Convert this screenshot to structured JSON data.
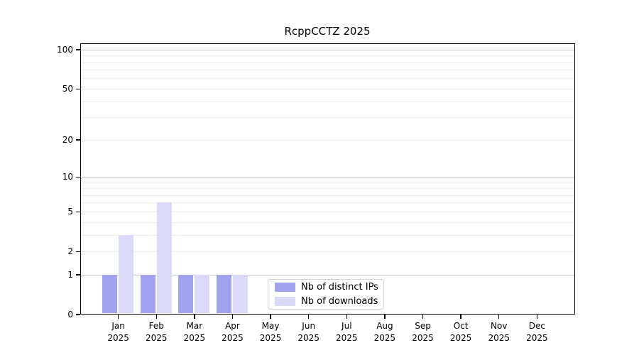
{
  "title": "RcppCCTZ 2025",
  "chart_data": {
    "type": "bar",
    "title": "RcppCCTZ 2025",
    "x_categories": [
      "Jan",
      "Feb",
      "Mar",
      "Apr",
      "May",
      "Jun",
      "Jul",
      "Aug",
      "Sep",
      "Oct",
      "Nov",
      "Dec"
    ],
    "x_year": "2025",
    "series": [
      {
        "name": "Nb of distinct IPs",
        "color": "#a2a2f0",
        "values": [
          1,
          1,
          1,
          1,
          0,
          0,
          0,
          0,
          0,
          0,
          0,
          0
        ]
      },
      {
        "name": "Nb of downloads",
        "color": "#dadaf8",
        "values": [
          3,
          6,
          1,
          1,
          0,
          0,
          0,
          0,
          0,
          0,
          0,
          0
        ]
      }
    ],
    "yscale": "log1p",
    "ylim": [
      0,
      112
    ],
    "y_tick_labels": [
      100,
      50,
      20,
      10,
      5,
      2,
      1,
      0
    ],
    "grid": {
      "major": [
        1,
        10,
        100
      ],
      "minor": [
        2,
        3,
        4,
        5,
        6,
        7,
        8,
        9,
        20,
        30,
        40,
        50,
        60,
        70,
        80,
        90
      ]
    },
    "legend": {
      "position": "lower center",
      "entries": [
        "Nb of distinct IPs",
        "Nb of downloads"
      ]
    },
    "colors": {
      "frame": "#000000",
      "grid_major": "#c9c9c9",
      "grid_minor": "#ededed",
      "background": "#ffffff"
    }
  }
}
